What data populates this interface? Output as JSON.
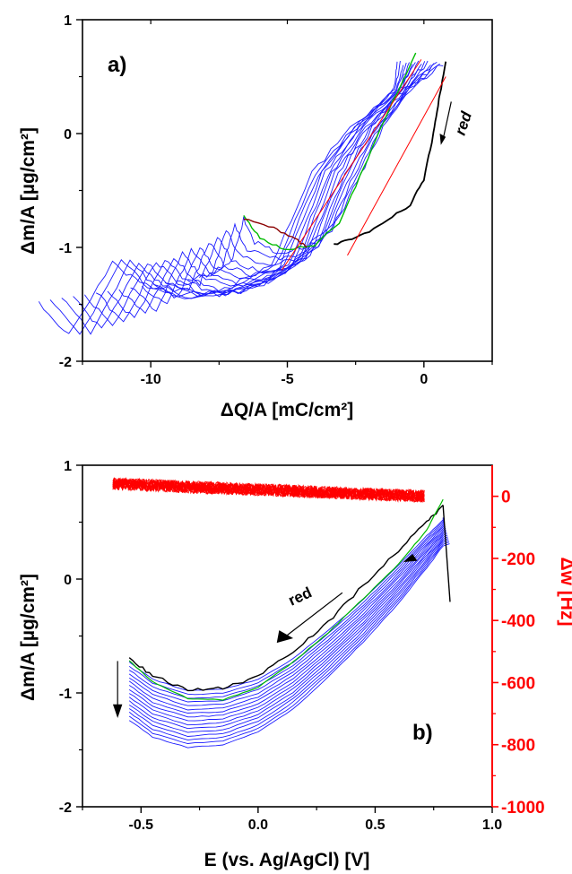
{
  "chart_data": [
    {
      "type": "line",
      "panel_label": "a)",
      "xlabel": "ΔQ/A  [mC/cm²]",
      "ylabel": "Δm/A  [µg/cm²]",
      "xlim": [
        -12.5,
        2.5
      ],
      "ylim": [
        -2,
        1
      ],
      "xticks": [
        "-10",
        "-5",
        "0"
      ],
      "yticks": [
        "1",
        "0",
        "-1",
        "-2"
      ],
      "annotation": "red",
      "blue_cycles": {
        "count": 16,
        "start_shift_x": -6.5,
        "shift_step_x": -0.32,
        "end_drop_y": -0.06,
        "sweep_points": [
          [
            0.7,
            0.62
          ],
          [
            -0.5,
            0.38
          ],
          [
            -1.5,
            0.05
          ],
          [
            -2.3,
            -0.35
          ],
          [
            -3.2,
            -0.78
          ],
          [
            -4.3,
            -1.0
          ],
          [
            -5.4,
            -1.05
          ],
          [
            -6.2,
            -0.95
          ],
          [
            -6.6,
            -0.75
          ]
        ]
      },
      "series": [
        {
          "color": "#000000",
          "points": [
            [
              0.8,
              0.62
            ],
            [
              0.55,
              0.3
            ],
            [
              0.35,
              0.0
            ],
            [
              0.0,
              -0.4
            ],
            [
              -0.5,
              -0.62
            ],
            [
              -1.5,
              -0.8
            ],
            [
              -2.5,
              -0.92
            ],
            [
              -3.3,
              -0.97
            ]
          ]
        },
        {
          "color": "#00bb00",
          "points": [
            [
              -0.3,
              0.7
            ],
            [
              -1.3,
              0.2
            ],
            [
              -2.2,
              -0.3
            ],
            [
              -3.1,
              -0.78
            ],
            [
              -4.0,
              -0.98
            ],
            [
              -5.1,
              -1.02
            ],
            [
              -6.0,
              -0.92
            ],
            [
              -6.6,
              -0.72
            ]
          ]
        },
        {
          "color": "#8b0000",
          "points": [
            [
              -6.6,
              -0.75
            ],
            [
              -5.5,
              -0.83
            ],
            [
              -4.7,
              -0.92
            ],
            [
              -4.3,
              -1.0
            ]
          ]
        },
        {
          "color": "#ff0000",
          "points": [
            [
              -5.2,
              -1.2
            ],
            [
              -0.1,
              0.65
            ]
          ]
        },
        {
          "color": "#ff0000",
          "points": [
            [
              -2.8,
              -1.07
            ],
            [
              0.8,
              0.5
            ]
          ]
        }
      ]
    },
    {
      "type": "line",
      "panel_label": "b)",
      "xlabel": "E (vs. Ag/AgCl)  [V]",
      "ylabel": "Δm/A  [µg/cm²]",
      "y2label": "Δw [Hz]",
      "xlim": [
        -0.75,
        1.0
      ],
      "ylim": [
        -2,
        1
      ],
      "y2lim": [
        -1000,
        100
      ],
      "xticks": [
        "-0.5",
        "0.0",
        "0.5",
        "1.0"
      ],
      "yticks": [
        "1",
        "0",
        "-1",
        "-2"
      ],
      "y2ticks": [
        "0",
        "-200",
        "-400",
        "-600",
        "-800",
        "-1000"
      ],
      "annotation": "red",
      "blue_cycles": {
        "count": 16,
        "base_points": [
          [
            -0.55,
            -0.73
          ],
          [
            -0.45,
            -0.88
          ],
          [
            -0.3,
            -0.98
          ],
          [
            -0.15,
            -0.97
          ],
          [
            0.0,
            -0.88
          ],
          [
            0.15,
            -0.7
          ],
          [
            0.3,
            -0.45
          ],
          [
            0.45,
            -0.18
          ],
          [
            0.6,
            0.12
          ],
          [
            0.72,
            0.38
          ],
          [
            0.79,
            0.52
          ]
        ],
        "offset_step_y": -0.034,
        "x_right_min": 0.79,
        "x_right_max": 0.82
      },
      "series": [
        {
          "color": "#000000",
          "points": [
            [
              -0.55,
              -0.7
            ],
            [
              -0.45,
              -0.85
            ],
            [
              -0.3,
              -0.97
            ],
            [
              -0.15,
              -0.96
            ],
            [
              0.0,
              -0.85
            ],
            [
              0.15,
              -0.63
            ],
            [
              0.3,
              -0.38
            ],
            [
              0.45,
              -0.05
            ],
            [
              0.6,
              0.25
            ],
            [
              0.72,
              0.5
            ],
            [
              0.79,
              0.65
            ]
          ]
        },
        {
          "color": "#00bb00",
          "points": [
            [
              -0.55,
              -0.72
            ],
            [
              -0.45,
              -0.9
            ],
            [
              -0.3,
              -1.05
            ],
            [
              -0.15,
              -1.06
            ],
            [
              0.0,
              -0.95
            ],
            [
              0.15,
              -0.73
            ],
            [
              0.3,
              -0.47
            ],
            [
              0.45,
              -0.17
            ],
            [
              0.6,
              0.13
            ],
            [
              0.72,
              0.43
            ],
            [
              0.79,
              0.7
            ]
          ]
        },
        {
          "name": "Δw",
          "color": "#ff0000",
          "axis": "right",
          "x_range": [
            -0.62,
            0.71
          ],
          "y_start": 40,
          "y_end": 0,
          "noise_hz": 20
        }
      ]
    }
  ]
}
